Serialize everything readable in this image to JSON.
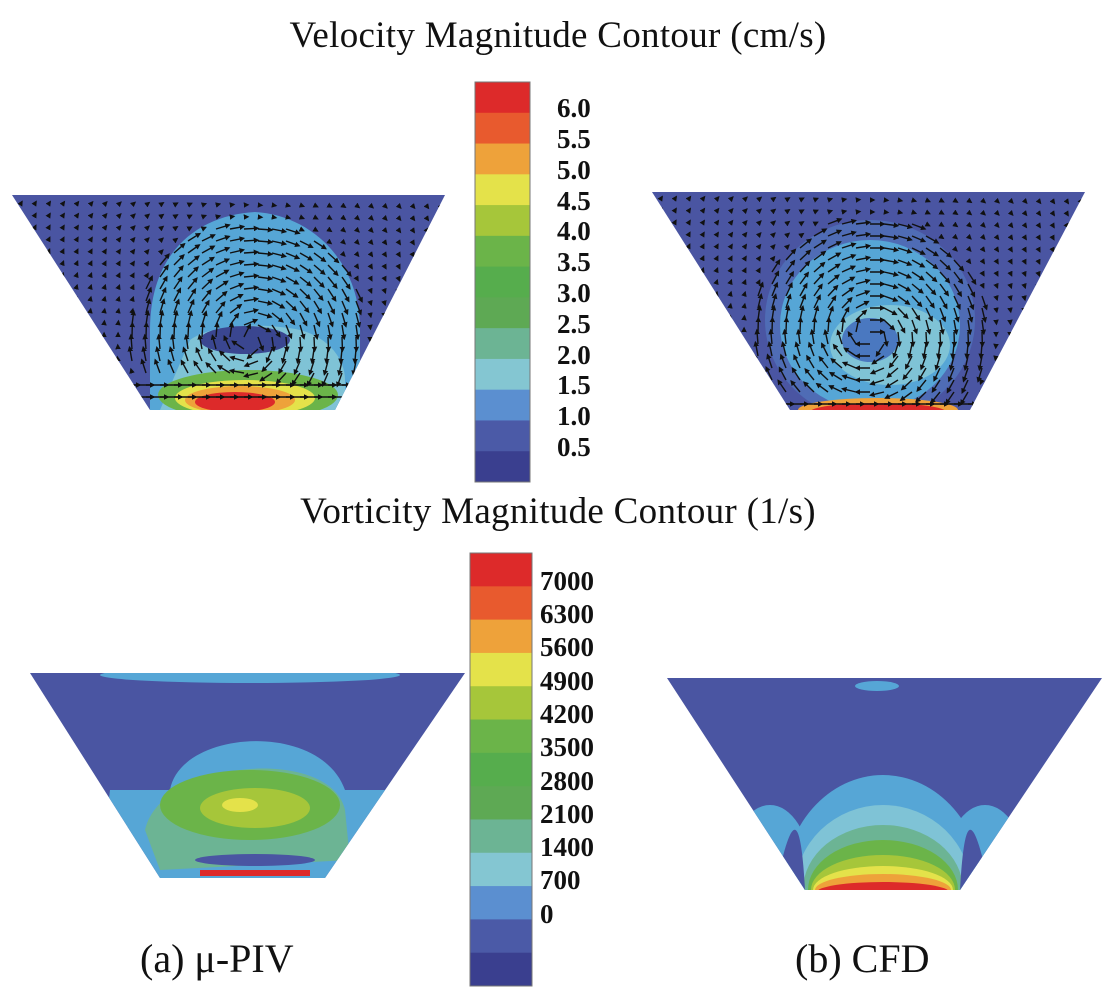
{
  "titles": {
    "velocity": "Velocity Magnitude Contour (cm/s)",
    "vorticity": "Vorticity Magnitude Contour (1/s)"
  },
  "captions": {
    "a": "(a) μ-PIV",
    "b": "(b) CFD"
  },
  "velocity_scale": {
    "labels": [
      "6.0",
      "5.5",
      "5.0",
      "4.5",
      "4.0",
      "3.5",
      "3.0",
      "2.5",
      "2.0",
      "1.5",
      "1.0",
      "0.5"
    ],
    "colors": [
      "#dd2a2a",
      "#e85a2e",
      "#eea23a",
      "#e4e24a",
      "#a6c63a",
      "#6bb449",
      "#56ad4d",
      "#5ea954",
      "#6cb494",
      "#84c6d2",
      "#5b8fd0",
      "#4b5aa7",
      "#3a3f8f"
    ]
  },
  "vorticity_scale": {
    "labels": [
      "7000",
      "6300",
      "5600",
      "4900",
      "4200",
      "3500",
      "2800",
      "2100",
      "1400",
      "700",
      "0"
    ],
    "colors": [
      "#dd2a2a",
      "#e85a2e",
      "#eea23a",
      "#e4e24a",
      "#a6c63a",
      "#6bb449",
      "#56ad4d",
      "#5ea954",
      "#6cb494",
      "#84c6d2",
      "#5b8fd0",
      "#4b5aa7",
      "#3a3f8f"
    ]
  },
  "field_colors": {
    "background": "#4a55a2",
    "cyan": "#56a6d6",
    "light_cyan": "#7fc3d6",
    "teal": "#6cb494",
    "green": "#6bb449",
    "yellow_green": "#a6c63a",
    "yellow": "#e4e24a",
    "orange": "#eea23a",
    "red": "#dd2a2a"
  }
}
